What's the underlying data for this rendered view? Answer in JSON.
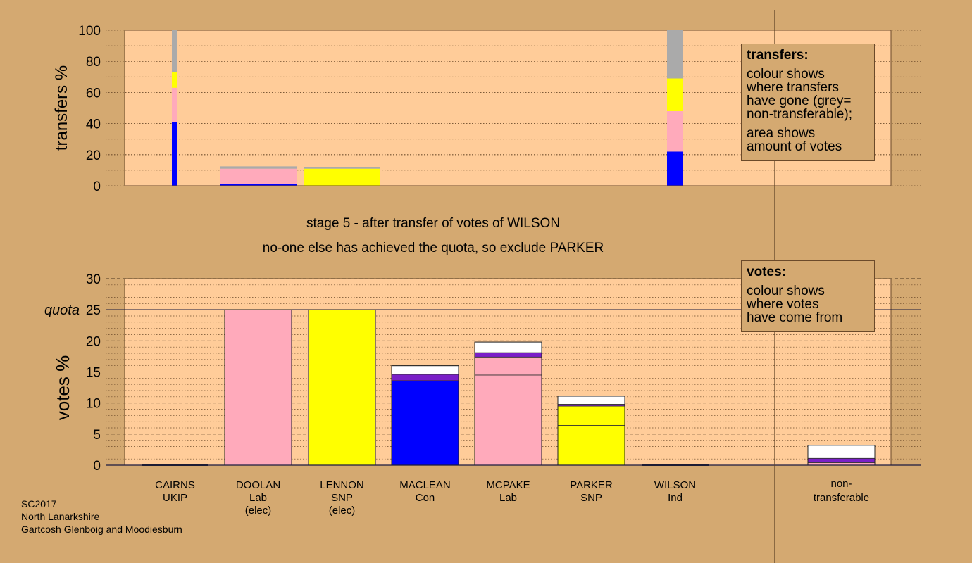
{
  "stage_title": "stage 5 - after transfer of votes of WILSON",
  "stage_subtitle": "no-one else has achieved the quota, so exclude PARKER",
  "colors": {
    "background": "#d4a971",
    "plot": "#ffcc99",
    "UKIP": "#aaaaaa",
    "Lab": "#ffaabb",
    "SNP": "#ffff00",
    "Con": "#0000ff",
    "Ind": "#ffffff",
    "LibDem": "#7a1fc8",
    "nontransferable": "#aaaaaa",
    "surplus": "#ffffff"
  },
  "legend_transfers": {
    "title": "transfers:",
    "lines_a": [
      "colour shows",
      "where transfers",
      "have gone (grey=",
      "non-transferable);"
    ],
    "lines_b": [
      "area shows",
      "amount of votes"
    ]
  },
  "legend_votes": {
    "title": "votes:",
    "lines": [
      "colour shows",
      "where votes",
      "have come from"
    ]
  },
  "footer": [
    "SC2017",
    "North Lanarkshire",
    "Gartcosh Glenboig and Moodiesburn"
  ],
  "chart_data": [
    {
      "type": "bar",
      "id": "transfers",
      "ylabel": "transfers %",
      "ylim": [
        0,
        100
      ],
      "yticks": [
        0,
        20,
        40,
        60,
        80,
        100
      ],
      "bars": [
        {
          "name": "CAIRNS",
          "width": "thin",
          "segments": [
            {
              "color": "Con",
              "value": 41
            },
            {
              "color": "Lab",
              "value": 22
            },
            {
              "color": "SNP",
              "value": 10
            },
            {
              "color": "nontransferable",
              "value": 27
            }
          ]
        },
        {
          "name": "DOOLAN",
          "width": "wide",
          "segments": [
            {
              "color": "Con",
              "value": 1
            },
            {
              "color": "Lab",
              "value": 10
            },
            {
              "color": "nontransferable",
              "value": 1.5
            }
          ]
        },
        {
          "name": "LENNON",
          "width": "wide",
          "segments": [
            {
              "color": "SNP",
              "value": 11
            },
            {
              "color": "nontransferable",
              "value": 1
            }
          ]
        },
        {
          "name": "WILSON",
          "width": "thin",
          "segments": [
            {
              "color": "Con",
              "value": 22
            },
            {
              "color": "Lab",
              "value": 26
            },
            {
              "color": "SNP",
              "value": 21
            },
            {
              "color": "nontransferable",
              "value": 31
            }
          ]
        }
      ]
    },
    {
      "type": "bar",
      "id": "votes",
      "ylabel": "votes %",
      "ylim": [
        0,
        30
      ],
      "yticks": [
        0,
        5,
        10,
        15,
        20,
        25,
        30
      ],
      "quota": 25,
      "quota_label": "quota",
      "candidates": [
        {
          "name": "CAIRNS",
          "party": "UKIP",
          "status": "",
          "segments": []
        },
        {
          "name": "DOOLAN",
          "party": "Lab",
          "status": "(elec)",
          "segments": [
            {
              "color": "Lab",
              "value": 25
            }
          ]
        },
        {
          "name": "LENNON",
          "party": "SNP",
          "status": "(elec)",
          "segments": [
            {
              "color": "SNP",
              "value": 25
            }
          ]
        },
        {
          "name": "MACLEAN",
          "party": "Con",
          "status": "",
          "segments": [
            {
              "color": "Con",
              "value": 13.6
            },
            {
              "color": "LibDem",
              "value": 1
            },
            {
              "color": "Ind",
              "value": 1.4
            }
          ]
        },
        {
          "name": "MCPAKE",
          "party": "Lab",
          "status": "",
          "segments": [
            {
              "color": "Lab",
              "value": 14.5
            },
            {
              "color": "Lab",
              "value": 2.9
            },
            {
              "color": "LibDem",
              "value": 0.7
            },
            {
              "color": "Ind",
              "value": 1.7
            }
          ]
        },
        {
          "name": "PARKER",
          "party": "SNP",
          "status": "",
          "segments": [
            {
              "color": "SNP",
              "value": 6.4
            },
            {
              "color": "SNP",
              "value": 3.1
            },
            {
              "color": "LibDem",
              "value": 0.3
            },
            {
              "color": "Ind",
              "value": 1.3
            }
          ]
        },
        {
          "name": "WILSON",
          "party": "Ind",
          "status": "",
          "segments": []
        }
      ],
      "nontransferable": {
        "label_lines": [
          "non-",
          "transferable"
        ],
        "segments": [
          {
            "color": "Lab",
            "value": 0.4
          },
          {
            "color": "LibDem",
            "value": 0.7
          },
          {
            "color": "Ind",
            "value": 2.1
          }
        ]
      }
    }
  ]
}
